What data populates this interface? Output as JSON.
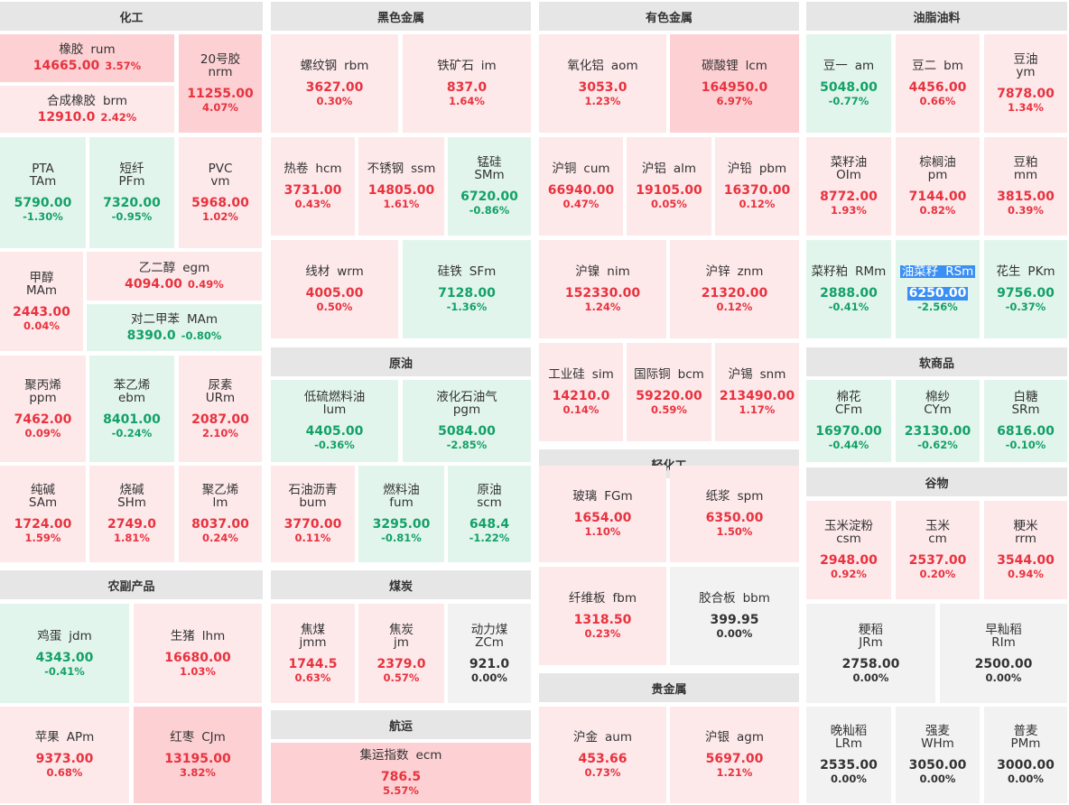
{
  "sections": [
    {
      "title": "化工",
      "items": [
        {
          "name": "橡胶",
          "code": "rum",
          "price": "14665.00",
          "change": "3.57%"
        },
        {
          "name": "20号胶",
          "code": "nrm",
          "price": "11255.00",
          "change": "4.07%"
        },
        {
          "name": "合成橡胶",
          "code": "brm",
          "price": "12910.0",
          "change": "2.42%"
        },
        {
          "name": "PTA",
          "code": "TAm",
          "price": "5790.00",
          "change": "-1.30%"
        },
        {
          "name": "短纤",
          "code": "PFm",
          "price": "7320.00",
          "change": "-0.95%"
        },
        {
          "name": "PVC",
          "code": "vm",
          "price": "5968.00",
          "change": "1.02%"
        },
        {
          "name": "甲醇",
          "code": "MAm",
          "price": "2443.00",
          "change": "0.04%"
        },
        {
          "name": "乙二醇",
          "code": "egm",
          "price": "4094.00",
          "change": "0.49%"
        },
        {
          "name": "对二甲苯",
          "code": "MAm",
          "price": "8390.0",
          "change": "-0.80%"
        },
        {
          "name": "聚丙烯",
          "code": "ppm",
          "price": "7462.00",
          "change": "0.09%"
        },
        {
          "name": "苯乙烯",
          "code": "ebm",
          "price": "8401.00",
          "change": "-0.24%"
        },
        {
          "name": "尿素",
          "code": "URm",
          "price": "2087.00",
          "change": "2.10%"
        },
        {
          "name": "纯碱",
          "code": "SAm",
          "price": "1724.00",
          "change": "1.59%"
        },
        {
          "name": "烧碱",
          "code": "SHm",
          "price": "2749.0",
          "change": "1.81%"
        },
        {
          "name": "聚乙烯",
          "code": "lm",
          "price": "8037.00",
          "change": "0.24%"
        }
      ]
    },
    {
      "title": "农副产品",
      "items": [
        {
          "name": "鸡蛋",
          "code": "jdm",
          "price": "4343.00",
          "change": "-0.41%"
        },
        {
          "name": "生猪",
          "code": "lhm",
          "price": "16680.00",
          "change": "1.03%"
        },
        {
          "name": "苹果",
          "code": "APm",
          "price": "9373.00",
          "change": "0.68%"
        },
        {
          "name": "红枣",
          "code": "CJm",
          "price": "13195.00",
          "change": "3.82%"
        }
      ]
    },
    {
      "title": "黑色金属",
      "items": [
        {
          "name": "螺纹钢",
          "code": "rbm",
          "price": "3627.00",
          "change": "0.30%"
        },
        {
          "name": "铁矿石",
          "code": "im",
          "price": "837.0",
          "change": "1.64%"
        },
        {
          "name": "热卷",
          "code": "hcm",
          "price": "3731.00",
          "change": "0.43%"
        },
        {
          "name": "不锈钢",
          "code": "ssm",
          "price": "14805.00",
          "change": "1.61%"
        },
        {
          "name": "锰硅",
          "code": "SMm",
          "price": "6720.00",
          "change": "-0.86%"
        },
        {
          "name": "线材",
          "code": "wrm",
          "price": "4005.00",
          "change": "0.50%"
        },
        {
          "name": "硅铁",
          "code": "SFm",
          "price": "7128.00",
          "change": "-1.36%"
        }
      ]
    },
    {
      "title": "原油",
      "items": [
        {
          "name": "低硫燃料油",
          "code": "lum",
          "price": "4405.00",
          "change": "-0.36%"
        },
        {
          "name": "液化石油气",
          "code": "pgm",
          "price": "5084.00",
          "change": "-2.85%"
        },
        {
          "name": "石油沥青",
          "code": "bum",
          "price": "3770.00",
          "change": "0.11%"
        },
        {
          "name": "燃料油",
          "code": "fum",
          "price": "3295.00",
          "change": "-0.81%"
        },
        {
          "name": "原油",
          "code": "scm",
          "price": "648.4",
          "change": "-1.22%"
        }
      ]
    },
    {
      "title": "煤炭",
      "items": [
        {
          "name": "焦煤",
          "code": "jmm",
          "price": "1744.5",
          "change": "0.63%"
        },
        {
          "name": "焦炭",
          "code": "jm",
          "price": "2379.0",
          "change": "0.57%"
        },
        {
          "name": "动力煤",
          "code": "ZCm",
          "price": "921.0",
          "change": "0.00%"
        }
      ]
    },
    {
      "title": "航运",
      "items": [
        {
          "name": "集运指数",
          "code": "ecm",
          "price": "786.5",
          "change": "5.57%"
        }
      ]
    },
    {
      "title": "有色金属",
      "items": [
        {
          "name": "氧化铝",
          "code": "aom",
          "price": "3053.0",
          "change": "1.23%"
        },
        {
          "name": "碳酸锂",
          "code": "lcm",
          "price": "164950.0",
          "change": "6.97%"
        },
        {
          "name": "沪铜",
          "code": "cum",
          "price": "66940.00",
          "change": "0.47%"
        },
        {
          "name": "沪铝",
          "code": "alm",
          "price": "19105.00",
          "change": "0.05%"
        },
        {
          "name": "沪铅",
          "code": "pbm",
          "price": "16370.00",
          "change": "0.12%"
        },
        {
          "name": "沪镍",
          "code": "nim",
          "price": "152330.00",
          "change": "1.24%"
        },
        {
          "name": "沪锌",
          "code": "znm",
          "price": "21320.00",
          "change": "0.12%"
        },
        {
          "name": "工业硅",
          "code": "sim",
          "price": "14210.0",
          "change": "0.14%"
        },
        {
          "name": "国际铜",
          "code": "bcm",
          "price": "59220.00",
          "change": "0.59%"
        },
        {
          "name": "沪锡",
          "code": "snm",
          "price": "213490.00",
          "change": "1.17%"
        }
      ]
    },
    {
      "title": "轻化工",
      "items": [
        {
          "name": "玻璃",
          "code": "FGm",
          "price": "1654.00",
          "change": "1.10%"
        },
        {
          "name": "纸浆",
          "code": "spm",
          "price": "6350.00",
          "change": "1.50%"
        },
        {
          "name": "纤维板",
          "code": "fbm",
          "price": "1318.50",
          "change": "0.23%"
        },
        {
          "name": "胶合板",
          "code": "bbm",
          "price": "399.95",
          "change": "0.00%"
        }
      ]
    },
    {
      "title": "贵金属",
      "items": [
        {
          "name": "沪金",
          "code": "aum",
          "price": "453.66",
          "change": "0.73%"
        },
        {
          "name": "沪银",
          "code": "agm",
          "price": "5697.00",
          "change": "1.21%"
        }
      ]
    },
    {
      "title": "油脂油料",
      "items": [
        {
          "name": "豆一",
          "code": "am",
          "price": "5048.00",
          "change": "-0.77%"
        },
        {
          "name": "豆二",
          "code": "bm",
          "price": "4456.00",
          "change": "0.66%"
        },
        {
          "name": "豆油",
          "code": "ym",
          "price": "7878.00",
          "change": "1.34%"
        },
        {
          "name": "菜籽油",
          "code": "OIm",
          "price": "8772.00",
          "change": "1.93%"
        },
        {
          "name": "棕榈油",
          "code": "pm",
          "price": "7144.00",
          "change": "0.82%"
        },
        {
          "name": "豆粕",
          "code": "mm",
          "price": "3815.00",
          "change": "0.39%"
        },
        {
          "name": "菜籽粕",
          "code": "RMm",
          "price": "2888.00",
          "change": "-0.41%"
        },
        {
          "name": "油菜籽",
          "code": "RSm",
          "price": "6250.00",
          "change": "-2.56%"
        },
        {
          "name": "花生",
          "code": "PKm",
          "price": "9756.00",
          "change": "-0.37%"
        }
      ]
    },
    {
      "title": "软商品",
      "items": [
        {
          "name": "棉花",
          "code": "CFm",
          "price": "16970.00",
          "change": "-0.44%"
        },
        {
          "name": "棉纱",
          "code": "CYm",
          "price": "23130.00",
          "change": "-0.62%"
        },
        {
          "name": "白糖",
          "code": "SRm",
          "price": "6816.00",
          "change": "-0.10%"
        }
      ]
    },
    {
      "title": "谷物",
      "items": [
        {
          "name": "玉米淀粉",
          "code": "csm",
          "price": "2948.00",
          "change": "0.92%"
        },
        {
          "name": "玉米",
          "code": "cm",
          "price": "2537.00",
          "change": "0.20%"
        },
        {
          "name": "粳米",
          "code": "rrm",
          "price": "3544.00",
          "change": "0.94%"
        },
        {
          "name": "粳稻",
          "code": "JRm",
          "price": "2758.00",
          "change": "0.00%"
        },
        {
          "name": "早籼稻",
          "code": "RIm",
          "price": "2500.00",
          "change": "0.00%"
        },
        {
          "name": "晚籼稻",
          "code": "LRm",
          "price": "2535.00",
          "change": "0.00%"
        },
        {
          "name": "强麦",
          "code": "WHm",
          "price": "3050.00",
          "change": "0.00%"
        },
        {
          "name": "普麦",
          "code": "PMm",
          "price": "3000.00",
          "change": "0.00%"
        }
      ]
    }
  ]
}
